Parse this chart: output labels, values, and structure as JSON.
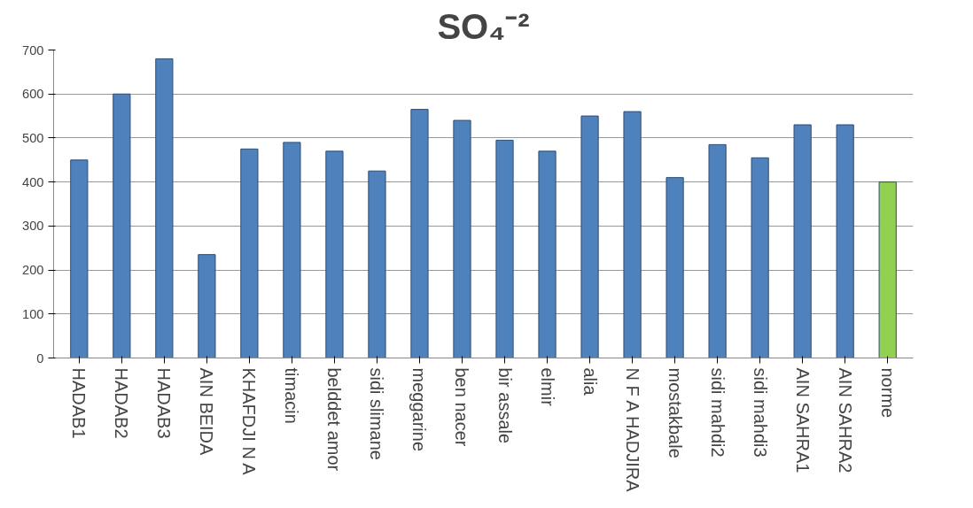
{
  "chart_data": {
    "type": "bar",
    "title": "SO₄⁻²",
    "categories": [
      "HADAB1",
      "HADAB2",
      "HADAB3",
      "AIN BEIDA",
      "KHAFDJI N A",
      "timacin",
      "belddet amor",
      "sidi slimane",
      "meggarine",
      "ben nacer",
      "bir assale",
      "elmir",
      "alia",
      "N F  A HADJIRA",
      "mostakbale",
      "sidi mahdi2",
      "sidi mahdi3",
      "AIN SAHRA1",
      "AIN SAHRA2",
      "norme"
    ],
    "values": [
      450,
      600,
      680,
      235,
      475,
      490,
      470,
      425,
      565,
      540,
      495,
      470,
      550,
      560,
      410,
      485,
      455,
      530,
      530,
      400
    ],
    "colors": [
      "#4f81bd",
      "#4f81bd",
      "#4f81bd",
      "#4f81bd",
      "#4f81bd",
      "#4f81bd",
      "#4f81bd",
      "#4f81bd",
      "#4f81bd",
      "#4f81bd",
      "#4f81bd",
      "#4f81bd",
      "#4f81bd",
      "#4f81bd",
      "#4f81bd",
      "#4f81bd",
      "#4f81bd",
      "#4f81bd",
      "#4f81bd",
      "#92d050"
    ],
    "ylim": [
      0,
      700
    ],
    "yticks": [
      0,
      100,
      200,
      300,
      400,
      500,
      600,
      700
    ],
    "grid": "y"
  }
}
